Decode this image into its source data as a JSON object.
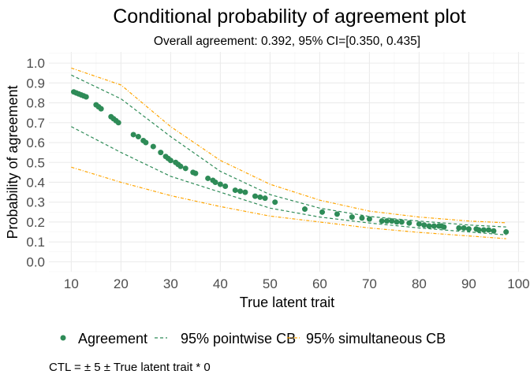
{
  "chart_data": {
    "type": "scatter",
    "title": "Conditional probability of agreement plot",
    "subtitle": "Overall agreement: 0.392, 95% CI=[0.350, 0.435]",
    "xlabel": "True latent trait",
    "ylabel": "Probability of agreement",
    "xlim": [
      5.5,
      101.2
    ],
    "ylim": [
      -0.05,
      1.056
    ],
    "xticks": [
      10,
      20,
      30,
      40,
      50,
      60,
      70,
      80,
      90,
      100
    ],
    "yticks": [
      "0.0",
      "0.1",
      "0.2",
      "0.3",
      "0.4",
      "0.5",
      "0.6",
      "0.7",
      "0.8",
      "0.9",
      "1.0"
    ],
    "grid": true,
    "legend_position": "bottom",
    "caption": "CTL = ± 5 ± True latent trait * 0",
    "colors": {
      "agreement": "#2e8b57",
      "pointwise": "#2e8b57",
      "simultaneous": "#ffa500"
    },
    "series": [
      {
        "name": "Agreement",
        "kind": "points",
        "x": [
          10.5,
          11,
          11.5,
          12,
          12.5,
          13,
          15,
          15.5,
          16,
          18,
          18.5,
          19,
          19.5,
          22.5,
          23.5,
          24.5,
          25,
          26.5,
          28,
          29,
          29.5,
          30,
          31,
          31.5,
          32,
          33,
          34.5,
          35,
          37.5,
          38.5,
          39,
          40,
          41,
          43,
          44,
          45,
          47,
          48,
          49,
          51,
          57,
          60.5,
          63.5,
          66.5,
          68.5,
          70,
          72.5,
          73.5,
          74.5,
          75.5,
          76.5,
          78,
          80,
          81,
          82,
          83,
          84,
          84.5,
          85,
          88,
          89,
          90,
          91.5,
          92,
          93,
          94,
          95,
          97.5
        ],
        "y": [
          0.855,
          0.85,
          0.845,
          0.84,
          0.835,
          0.83,
          0.79,
          0.78,
          0.77,
          0.73,
          0.72,
          0.71,
          0.7,
          0.64,
          0.63,
          0.61,
          0.6,
          0.58,
          0.55,
          0.53,
          0.52,
          0.51,
          0.5,
          0.49,
          0.48,
          0.47,
          0.45,
          0.445,
          0.42,
          0.41,
          0.4,
          0.39,
          0.38,
          0.36,
          0.355,
          0.35,
          0.33,
          0.325,
          0.32,
          0.3,
          0.265,
          0.25,
          0.24,
          0.225,
          0.22,
          0.215,
          0.205,
          0.205,
          0.205,
          0.2,
          0.2,
          0.195,
          0.19,
          0.185,
          0.18,
          0.18,
          0.18,
          0.18,
          0.175,
          0.17,
          0.17,
          0.165,
          0.165,
          0.16,
          0.16,
          0.16,
          0.155,
          0.15
        ]
      },
      {
        "name": "95% pointwise CB",
        "kind": "band",
        "x": [
          10,
          20,
          30,
          40,
          50,
          60,
          70,
          80,
          90,
          97.5
        ],
        "upper": [
          0.94,
          0.82,
          0.63,
          0.455,
          0.338,
          0.27,
          0.228,
          0.205,
          0.185,
          0.175
        ],
        "lower": [
          0.68,
          0.55,
          0.43,
          0.35,
          0.27,
          0.225,
          0.195,
          0.17,
          0.15,
          0.135
        ]
      },
      {
        "name": "95% simultaneous CB",
        "kind": "band",
        "x": [
          10,
          20,
          30,
          40,
          50,
          60,
          70,
          80,
          90,
          97.5
        ],
        "upper": [
          0.975,
          0.89,
          0.68,
          0.51,
          0.39,
          0.31,
          0.255,
          0.225,
          0.205,
          0.196
        ],
        "lower": [
          0.476,
          0.4,
          0.333,
          0.278,
          0.23,
          0.2,
          0.17,
          0.148,
          0.13,
          0.116
        ]
      }
    ]
  }
}
